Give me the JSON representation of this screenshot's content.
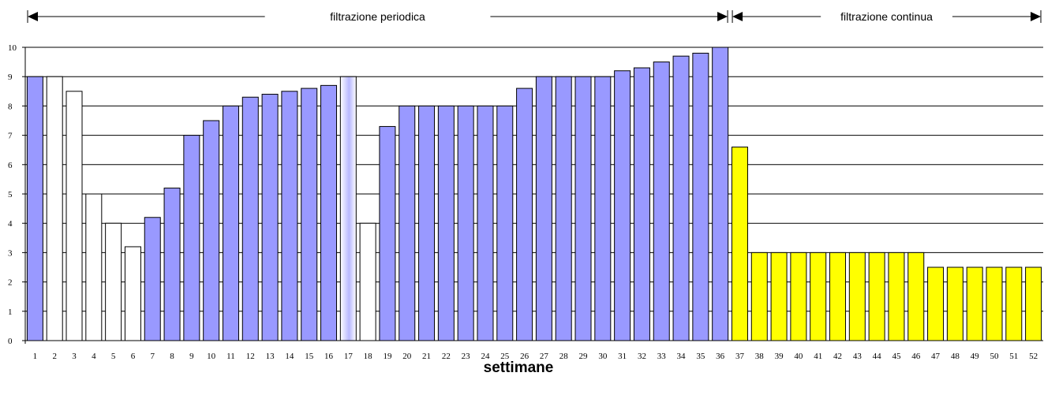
{
  "chart_data": {
    "type": "bar",
    "title": "",
    "xlabel": "settimane",
    "ylabel": "",
    "ylim": [
      0,
      10
    ],
    "yticks": [
      0,
      1,
      2,
      3,
      4,
      5,
      6,
      7,
      8,
      9,
      10
    ],
    "grid": true,
    "categories": [
      "1",
      "2",
      "3",
      "4",
      "5",
      "6",
      "7",
      "8",
      "9",
      "10",
      "11",
      "12",
      "13",
      "14",
      "15",
      "16",
      "17",
      "18",
      "19",
      "20",
      "21",
      "22",
      "23",
      "24",
      "25",
      "26",
      "27",
      "28",
      "29",
      "30",
      "31",
      "32",
      "33",
      "34",
      "35",
      "36",
      "37",
      "38",
      "39",
      "40",
      "41",
      "42",
      "43",
      "44",
      "45",
      "46",
      "47",
      "48",
      "49",
      "50",
      "51",
      "52"
    ],
    "values": [
      9,
      9,
      8.5,
      5,
      4,
      3.2,
      4.2,
      5.2,
      7,
      7.5,
      8,
      8.3,
      8.4,
      8.5,
      8.6,
      8.7,
      9,
      4,
      7.3,
      8,
      8,
      8,
      8,
      8,
      8,
      8.6,
      9,
      9,
      9,
      9,
      9.2,
      9.3,
      9.5,
      9.7,
      9.8,
      10,
      6.6,
      3,
      3,
      3,
      3,
      3,
      3,
      3,
      3,
      3,
      2.5,
      2.5,
      2.5,
      2.5,
      2.5,
      2.5
    ],
    "bar_fills": [
      "blue",
      "white",
      "white",
      "white",
      "white",
      "white",
      "blue",
      "blue",
      "blue",
      "blue",
      "blue",
      "blue",
      "blue",
      "blue",
      "blue",
      "blue",
      "gradient",
      "white",
      "blue",
      "blue",
      "blue",
      "blue",
      "blue",
      "blue",
      "blue",
      "blue",
      "blue",
      "blue",
      "blue",
      "blue",
      "blue",
      "blue",
      "blue",
      "blue",
      "blue",
      "blue",
      "yellow",
      "yellow",
      "yellow",
      "yellow",
      "yellow",
      "yellow",
      "yellow",
      "yellow",
      "yellow",
      "yellow",
      "yellow",
      "yellow",
      "yellow",
      "yellow",
      "yellow",
      "yellow"
    ],
    "colors": {
      "blue": "#9999ff",
      "white": "#ffffff",
      "yellow": "#ffff00",
      "outline": "#000000"
    },
    "annotations": [
      {
        "text": "filtrazione periodica",
        "from_week": 1,
        "to_week": 36
      },
      {
        "text": "filtrazione continua",
        "from_week": 37,
        "to_week": 52
      }
    ]
  }
}
